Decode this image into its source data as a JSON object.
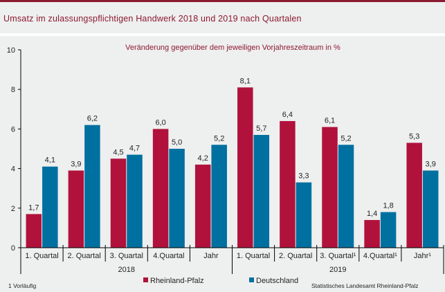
{
  "header": {
    "title": "Umsatz im zulassungspflichtigen Handwerk 2018 und 2019 nach Quartalen"
  },
  "colors": {
    "accent": "#8b1a30",
    "rheinland_pfalz": "#b0123c",
    "deutschland": "#0070a0",
    "background": "#eeefef"
  },
  "chart_data": {
    "type": "bar",
    "title": "Umsatz im zulassungspflichtigen Handwerk 2018 und 2019 nach Quartalen",
    "subtitle": "Veränderung gegenüber dem jeweiligen Vorjahreszeitraum in %",
    "xlabel": "",
    "ylabel": "",
    "ylim": [
      0,
      10
    ],
    "yticks": [
      0,
      2,
      4,
      6,
      8,
      10
    ],
    "grid": false,
    "categories": [
      "1. Quartal",
      "2. Quartal",
      "3. Quartal",
      "4.Quartal",
      "Jahr",
      "1. Quartal",
      "2. Quartal",
      "3. Quartal¹",
      "4.Quartal¹",
      "Jahr¹"
    ],
    "groups": [
      {
        "label": "2018",
        "span": 5
      },
      {
        "label": "2019",
        "span": 5
      }
    ],
    "series": [
      {
        "name": "Rheinland-Pfalz",
        "color": "#b0123c",
        "values": [
          1.7,
          3.9,
          4.5,
          6.0,
          4.2,
          8.1,
          6.4,
          6.1,
          1.4,
          5.3
        ],
        "labels": [
          "1,7",
          "3,9",
          "4,5",
          "6,0",
          "4,2",
          "8,1",
          "6,4",
          "6,1",
          "1,4",
          "5,3"
        ]
      },
      {
        "name": "Deutschland",
        "color": "#0070a0",
        "values": [
          4.1,
          6.2,
          4.7,
          5.0,
          5.2,
          5.7,
          3.3,
          5.2,
          1.8,
          3.9
        ],
        "labels": [
          "4,1",
          "6,2",
          "4,7",
          "5,0",
          "5,2",
          "5,7",
          "3,3",
          "5,2",
          "1,8",
          "3,9"
        ]
      }
    ],
    "legend": [
      "Rheinland-Pfalz",
      "Deutschland"
    ],
    "legend_position": "bottom"
  },
  "footer": {
    "footnote": "1 Vorläufig",
    "source": "Statistisches Landesamt Rheinland-Pfalz"
  }
}
